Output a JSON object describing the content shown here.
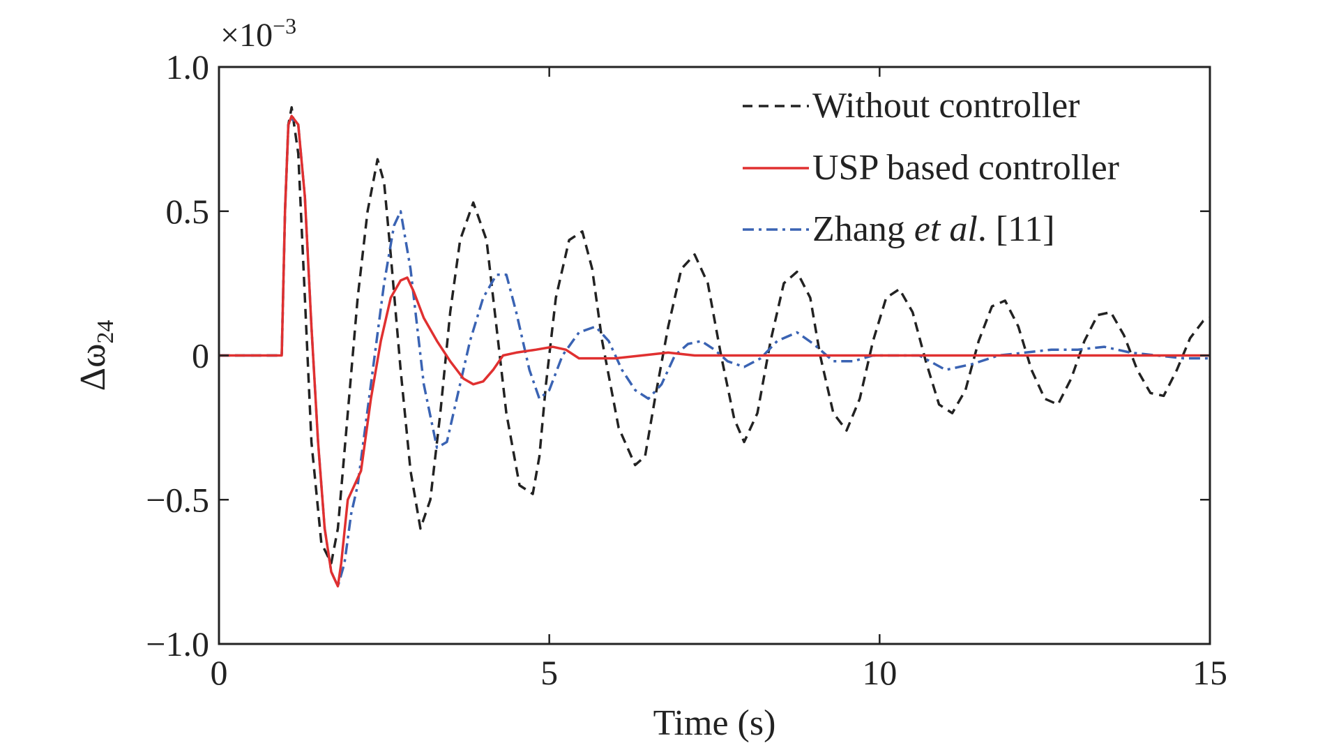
{
  "chart_data": {
    "type": "line",
    "xlabel": "Time (s)",
    "ylabel_main": "Δω",
    "ylabel_sub": "24",
    "y_multiplier_base": "×10",
    "y_multiplier_exp": "−3",
    "xlim": [
      0,
      15
    ],
    "ylim": [
      -1.0,
      1.0
    ],
    "x_ticks": [
      0,
      5,
      10,
      15
    ],
    "x_tick_labels": [
      "0",
      "5",
      "10",
      "15"
    ],
    "y_ticks": [
      1.0,
      0.5,
      0,
      -0.5,
      -1.0
    ],
    "y_tick_labels": [
      "1.0",
      "0.5",
      "0",
      "−0.5",
      "−1.0"
    ],
    "grid": false,
    "legend_position": "top-right",
    "series": [
      {
        "name": "Without controller",
        "legend_text": "Without controller",
        "color": "#222222",
        "dash": "dashed",
        "x": [
          0,
          0.95,
          1.0,
          1.05,
          1.1,
          1.2,
          1.3,
          1.4,
          1.55,
          1.7,
          1.8,
          1.95,
          2.1,
          2.25,
          2.4,
          2.5,
          2.6,
          2.75,
          2.9,
          3.05,
          3.2,
          3.35,
          3.5,
          3.65,
          3.85,
          4.05,
          4.2,
          4.35,
          4.55,
          4.75,
          4.85,
          4.95,
          5.1,
          5.3,
          5.5,
          5.65,
          5.8,
          6.05,
          6.3,
          6.45,
          6.6,
          6.8,
          7.0,
          7.2,
          7.4,
          7.6,
          7.8,
          7.95,
          8.15,
          8.35,
          8.55,
          8.75,
          8.95,
          9.1,
          9.3,
          9.5,
          9.7,
          9.9,
          10.1,
          10.3,
          10.5,
          10.7,
          10.9,
          11.1,
          11.3,
          11.5,
          11.7,
          11.9,
          12.1,
          12.3,
          12.5,
          12.7,
          12.9,
          13.1,
          13.3,
          13.5,
          13.7,
          13.9,
          14.1,
          14.3,
          14.5,
          14.7,
          14.9,
          15.0
        ],
        "y": [
          0,
          0,
          0.5,
          0.8,
          0.86,
          0.7,
          0.2,
          -0.3,
          -0.65,
          -0.72,
          -0.6,
          -0.2,
          0.2,
          0.5,
          0.68,
          0.6,
          0.35,
          -0.05,
          -0.4,
          -0.6,
          -0.5,
          -0.2,
          0.15,
          0.4,
          0.53,
          0.4,
          0.1,
          -0.2,
          -0.45,
          -0.48,
          -0.35,
          -0.1,
          0.2,
          0.4,
          0.43,
          0.3,
          0.05,
          -0.25,
          -0.38,
          -0.35,
          -0.15,
          0.1,
          0.3,
          0.35,
          0.25,
          0.0,
          -0.22,
          -0.3,
          -0.2,
          0.05,
          0.25,
          0.29,
          0.2,
          0.0,
          -0.2,
          -0.26,
          -0.15,
          0.05,
          0.2,
          0.23,
          0.15,
          -0.02,
          -0.17,
          -0.2,
          -0.12,
          0.05,
          0.17,
          0.19,
          0.1,
          -0.05,
          -0.15,
          -0.17,
          -0.08,
          0.05,
          0.14,
          0.15,
          0.07,
          -0.05,
          -0.13,
          -0.14,
          -0.05,
          0.06,
          0.12,
          0.13
        ]
      },
      {
        "name": "USP based controller",
        "legend_text": "USP based controller",
        "color": "#e03030",
        "dash": "solid",
        "x": [
          0,
          0.95,
          1.0,
          1.05,
          1.1,
          1.2,
          1.3,
          1.4,
          1.5,
          1.6,
          1.7,
          1.8,
          1.85,
          1.95,
          2.05,
          2.15,
          2.3,
          2.45,
          2.6,
          2.75,
          2.85,
          2.95,
          3.1,
          3.3,
          3.5,
          3.7,
          3.85,
          4.0,
          4.15,
          4.3,
          4.5,
          4.8,
          5.05,
          5.25,
          5.45,
          5.7,
          6.0,
          6.4,
          6.8,
          7.2,
          7.6,
          8.0,
          9.0,
          10.0,
          11.0,
          12.0,
          13.0,
          14.0,
          15.0
        ],
        "y": [
          0,
          0,
          0.5,
          0.8,
          0.83,
          0.8,
          0.55,
          0.1,
          -0.3,
          -0.6,
          -0.75,
          -0.8,
          -0.72,
          -0.5,
          -0.45,
          -0.4,
          -0.15,
          0.05,
          0.2,
          0.26,
          0.27,
          0.22,
          0.13,
          0.05,
          -0.02,
          -0.08,
          -0.1,
          -0.09,
          -0.05,
          0.0,
          0.01,
          0.02,
          0.03,
          0.02,
          -0.01,
          -0.01,
          -0.01,
          0.0,
          0.01,
          0.0,
          0.0,
          0.0,
          0.0,
          0.0,
          0.0,
          0.0,
          0.0,
          0.0,
          0.0
        ]
      },
      {
        "name": "Zhang et al. [11]",
        "legend_text_pre": "Zhang ",
        "legend_text_italic": "et al",
        "legend_text_post": ". [11]",
        "color": "#3a63b3",
        "dash": "dashdot",
        "x": [
          0,
          0.95,
          1.0,
          1.05,
          1.1,
          1.2,
          1.3,
          1.4,
          1.5,
          1.6,
          1.7,
          1.8,
          1.9,
          2.0,
          2.1,
          2.3,
          2.5,
          2.65,
          2.75,
          2.9,
          3.1,
          3.3,
          3.45,
          3.6,
          3.8,
          4.0,
          4.2,
          4.35,
          4.5,
          4.7,
          4.85,
          5.0,
          5.2,
          5.45,
          5.7,
          5.9,
          6.1,
          6.3,
          6.5,
          6.7,
          6.9,
          7.1,
          7.3,
          7.5,
          7.7,
          7.95,
          8.2,
          8.45,
          8.75,
          9.0,
          9.3,
          9.6,
          9.9,
          10.2,
          10.6,
          11.0,
          11.4,
          11.8,
          12.2,
          12.6,
          13.0,
          13.4,
          13.8,
          14.2,
          14.6,
          15.0
        ],
        "y": [
          0,
          0,
          0.5,
          0.8,
          0.82,
          0.8,
          0.55,
          0.1,
          -0.3,
          -0.6,
          -0.75,
          -0.8,
          -0.72,
          -0.55,
          -0.45,
          -0.1,
          0.25,
          0.45,
          0.5,
          0.3,
          -0.1,
          -0.32,
          -0.3,
          -0.15,
          0.05,
          0.2,
          0.28,
          0.28,
          0.15,
          -0.05,
          -0.15,
          -0.12,
          0.0,
          0.08,
          0.1,
          0.05,
          -0.05,
          -0.12,
          -0.15,
          -0.1,
          0.0,
          0.04,
          0.05,
          0.02,
          -0.02,
          -0.04,
          -0.01,
          0.05,
          0.08,
          0.04,
          -0.02,
          -0.02,
          0.0,
          0.0,
          0.0,
          -0.05,
          -0.03,
          0.0,
          0.01,
          0.02,
          0.02,
          0.03,
          0.01,
          0.0,
          -0.01,
          -0.01
        ]
      }
    ]
  }
}
